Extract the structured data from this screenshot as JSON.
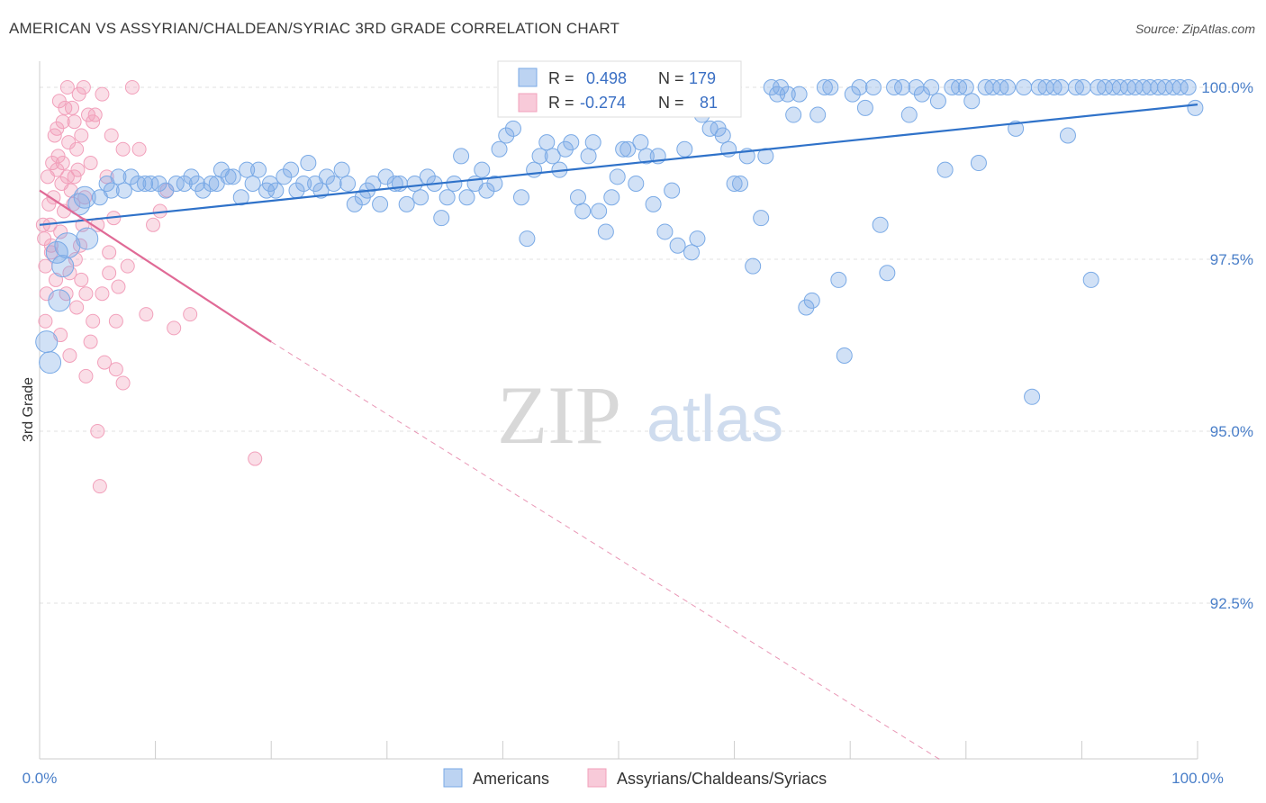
{
  "header": {
    "title": "AMERICAN VS ASSYRIAN/CHALDEAN/SYRIAC 3RD GRADE CORRELATION CHART",
    "source": "Source: ZipAtlas.com"
  },
  "watermark": {
    "zip": "ZIP",
    "atlas": "atlas"
  },
  "stats": {
    "r_label": "R =",
    "n_label": "N =",
    "americans": {
      "r": "0.498",
      "n": "179"
    },
    "assyrians": {
      "r": "-0.274",
      "n": "81"
    }
  },
  "chart_data": {
    "type": "scatter",
    "title": "AMERICAN VS ASSYRIAN/CHALDEAN/SYRIAC 3RD GRADE CORRELATION CHART",
    "xlabel": "",
    "ylabel": "3rd Grade",
    "xlim": [
      0,
      100
    ],
    "ylim": [
      90.2,
      100.4
    ],
    "x_tick_labels": [
      "0.0%",
      "100.0%"
    ],
    "y_ticks": [
      {
        "value": 100.0,
        "label": "100.0%"
      },
      {
        "value": 97.5,
        "label": "97.5%"
      },
      {
        "value": 95.0,
        "label": "95.0%"
      },
      {
        "value": 92.5,
        "label": "92.5%"
      }
    ],
    "grid": true,
    "legend_position": "bottom-center",
    "colors": {
      "americans": "#7aaae6",
      "americans_line": "#2f72c9",
      "assyrians": "#f2a0bb",
      "assyrians_line": "#e06a96"
    },
    "series": [
      {
        "name": "Americans",
        "color": "#7aaae6",
        "trend": {
          "x": [
            0,
            100
          ],
          "y": [
            98.0,
            99.75
          ],
          "style": "solid"
        },
        "points": [
          [
            0.6,
            96.3
          ],
          [
            0.9,
            96.0
          ],
          [
            1.5,
            97.6
          ],
          [
            1.7,
            96.9
          ],
          [
            2.0,
            97.4
          ],
          [
            2.4,
            97.7
          ],
          [
            3.4,
            98.3
          ],
          [
            3.9,
            98.4
          ],
          [
            4.1,
            97.8
          ],
          [
            5.2,
            98.4
          ],
          [
            5.8,
            98.6
          ],
          [
            6.2,
            98.5
          ],
          [
            6.8,
            98.7
          ],
          [
            7.3,
            98.5
          ],
          [
            7.9,
            98.7
          ],
          [
            8.5,
            98.6
          ],
          [
            9.1,
            98.6
          ],
          [
            9.6,
            98.6
          ],
          [
            10.3,
            98.6
          ],
          [
            10.9,
            98.5
          ],
          [
            11.8,
            98.6
          ],
          [
            12.5,
            98.6
          ],
          [
            13.1,
            98.7
          ],
          [
            13.6,
            98.6
          ],
          [
            14.1,
            98.5
          ],
          [
            14.8,
            98.6
          ],
          [
            15.3,
            98.6
          ],
          [
            15.7,
            98.8
          ],
          [
            16.3,
            98.7
          ],
          [
            16.7,
            98.7
          ],
          [
            17.4,
            98.4
          ],
          [
            17.9,
            98.8
          ],
          [
            18.4,
            98.6
          ],
          [
            18.9,
            98.8
          ],
          [
            19.6,
            98.5
          ],
          [
            19.9,
            98.6
          ],
          [
            20.4,
            98.5
          ],
          [
            21.1,
            98.7
          ],
          [
            21.7,
            98.8
          ],
          [
            22.2,
            98.5
          ],
          [
            22.8,
            98.6
          ],
          [
            23.2,
            98.9
          ],
          [
            23.8,
            98.6
          ],
          [
            24.3,
            98.5
          ],
          [
            24.8,
            98.7
          ],
          [
            25.4,
            98.6
          ],
          [
            26.1,
            98.8
          ],
          [
            26.6,
            98.6
          ],
          [
            27.2,
            98.3
          ],
          [
            27.9,
            98.4
          ],
          [
            28.3,
            98.5
          ],
          [
            28.8,
            98.6
          ],
          [
            29.4,
            98.3
          ],
          [
            29.9,
            98.7
          ],
          [
            30.7,
            98.6
          ],
          [
            31.1,
            98.6
          ],
          [
            31.7,
            98.3
          ],
          [
            32.4,
            98.6
          ],
          [
            32.9,
            98.4
          ],
          [
            33.5,
            98.7
          ],
          [
            34.1,
            98.6
          ],
          [
            34.7,
            98.1
          ],
          [
            35.2,
            98.4
          ],
          [
            35.8,
            98.6
          ],
          [
            36.4,
            99.0
          ],
          [
            36.9,
            98.4
          ],
          [
            37.6,
            98.6
          ],
          [
            38.2,
            98.8
          ],
          [
            38.6,
            98.5
          ],
          [
            39.3,
            98.6
          ],
          [
            39.7,
            99.1
          ],
          [
            40.3,
            99.3
          ],
          [
            40.9,
            99.4
          ],
          [
            41.6,
            98.4
          ],
          [
            42.1,
            97.8
          ],
          [
            42.7,
            98.8
          ],
          [
            43.2,
            99.0
          ],
          [
            43.8,
            99.2
          ],
          [
            44.3,
            99.0
          ],
          [
            44.9,
            98.8
          ],
          [
            45.4,
            99.1
          ],
          [
            45.9,
            99.2
          ],
          [
            46.5,
            98.4
          ],
          [
            46.9,
            98.2
          ],
          [
            47.4,
            99.0
          ],
          [
            47.8,
            99.2
          ],
          [
            48.3,
            98.2
          ],
          [
            48.9,
            97.9
          ],
          [
            49.4,
            98.4
          ],
          [
            49.9,
            98.7
          ],
          [
            50.4,
            99.1
          ],
          [
            50.8,
            99.1
          ],
          [
            51.5,
            98.6
          ],
          [
            51.9,
            99.2
          ],
          [
            52.4,
            99.0
          ],
          [
            53.0,
            98.3
          ],
          [
            53.4,
            99.0
          ],
          [
            54.0,
            97.9
          ],
          [
            54.6,
            98.5
          ],
          [
            55.1,
            97.7
          ],
          [
            55.7,
            99.1
          ],
          [
            56.3,
            97.6
          ],
          [
            56.8,
            97.8
          ],
          [
            57.2,
            99.6
          ],
          [
            57.9,
            99.4
          ],
          [
            58.6,
            99.4
          ],
          [
            59.0,
            99.3
          ],
          [
            59.5,
            99.1
          ],
          [
            60.0,
            98.6
          ],
          [
            60.5,
            98.6
          ],
          [
            61.1,
            99.0
          ],
          [
            61.6,
            97.4
          ],
          [
            62.3,
            98.1
          ],
          [
            62.7,
            99.0
          ],
          [
            63.2,
            100.0
          ],
          [
            63.7,
            99.9
          ],
          [
            64.0,
            100.0
          ],
          [
            64.6,
            99.9
          ],
          [
            65.1,
            99.6
          ],
          [
            65.6,
            99.9
          ],
          [
            66.2,
            96.8
          ],
          [
            66.7,
            96.9
          ],
          [
            67.2,
            99.6
          ],
          [
            67.8,
            100.0
          ],
          [
            68.3,
            100.0
          ],
          [
            69.0,
            97.2
          ],
          [
            69.5,
            96.1
          ],
          [
            70.2,
            99.9
          ],
          [
            70.8,
            100.0
          ],
          [
            71.3,
            99.7
          ],
          [
            72.0,
            100.0
          ],
          [
            72.6,
            98.0
          ],
          [
            73.2,
            97.3
          ],
          [
            73.8,
            100.0
          ],
          [
            74.5,
            100.0
          ],
          [
            75.1,
            99.6
          ],
          [
            75.7,
            100.0
          ],
          [
            76.2,
            99.9
          ],
          [
            77.0,
            100.0
          ],
          [
            77.6,
            99.8
          ],
          [
            78.2,
            98.8
          ],
          [
            78.8,
            100.0
          ],
          [
            79.4,
            100.0
          ],
          [
            80.0,
            100.0
          ],
          [
            80.5,
            99.8
          ],
          [
            81.1,
            98.9
          ],
          [
            81.7,
            100.0
          ],
          [
            82.3,
            100.0
          ],
          [
            83.0,
            100.0
          ],
          [
            83.6,
            100.0
          ],
          [
            84.3,
            99.4
          ],
          [
            85.0,
            100.0
          ],
          [
            85.7,
            95.5
          ],
          [
            86.3,
            100.0
          ],
          [
            86.9,
            100.0
          ],
          [
            87.6,
            100.0
          ],
          [
            88.2,
            100.0
          ],
          [
            88.8,
            99.3
          ],
          [
            89.5,
            100.0
          ],
          [
            90.1,
            100.0
          ],
          [
            90.8,
            97.2
          ],
          [
            91.4,
            100.0
          ],
          [
            92.0,
            100.0
          ],
          [
            92.7,
            100.0
          ],
          [
            93.3,
            100.0
          ],
          [
            94.0,
            100.0
          ],
          [
            94.6,
            100.0
          ],
          [
            95.3,
            100.0
          ],
          [
            95.9,
            100.0
          ],
          [
            96.6,
            100.0
          ],
          [
            97.2,
            100.0
          ],
          [
            97.9,
            100.0
          ],
          [
            98.5,
            100.0
          ],
          [
            99.2,
            100.0
          ],
          [
            99.8,
            99.7
          ]
        ]
      },
      {
        "name": "Assyrians/Chaldeans/Syriacs",
        "color": "#f2a0bb",
        "trend": {
          "x": [
            0,
            20
          ],
          "y": [
            98.5,
            96.3
          ],
          "style": "solid",
          "extended": {
            "x": [
              20,
              78
            ],
            "y": [
              96.3,
              90.2
            ],
            "style": "dashed"
          }
        },
        "points": [
          [
            0.3,
            98.0
          ],
          [
            0.4,
            97.8
          ],
          [
            0.5,
            97.4
          ],
          [
            0.6,
            97.0
          ],
          [
            0.7,
            98.7
          ],
          [
            0.8,
            98.3
          ],
          [
            0.9,
            98.0
          ],
          [
            1.0,
            97.6
          ],
          [
            1.1,
            98.9
          ],
          [
            1.2,
            98.4
          ],
          [
            1.3,
            99.3
          ],
          [
            1.4,
            97.2
          ],
          [
            1.5,
            98.8
          ],
          [
            1.6,
            99.0
          ],
          [
            1.7,
            99.8
          ],
          [
            1.8,
            97.9
          ],
          [
            1.9,
            98.6
          ],
          [
            2.0,
            99.5
          ],
          [
            2.1,
            98.2
          ],
          [
            2.2,
            99.7
          ],
          [
            2.3,
            97.0
          ],
          [
            2.4,
            98.7
          ],
          [
            2.5,
            99.2
          ],
          [
            2.6,
            96.1
          ],
          [
            2.7,
            98.5
          ],
          [
            2.8,
            99.7
          ],
          [
            2.9,
            98.3
          ],
          [
            3.0,
            99.5
          ],
          [
            3.1,
            97.5
          ],
          [
            3.2,
            99.1
          ],
          [
            3.3,
            98.8
          ],
          [
            3.4,
            99.9
          ],
          [
            3.5,
            97.7
          ],
          [
            3.6,
            99.3
          ],
          [
            3.7,
            98.0
          ],
          [
            3.8,
            100.0
          ],
          [
            3.9,
            98.4
          ],
          [
            4.0,
            97.0
          ],
          [
            4.2,
            99.6
          ],
          [
            4.4,
            98.9
          ],
          [
            4.6,
            96.6
          ],
          [
            4.8,
            99.6
          ],
          [
            5.0,
            95.0
          ],
          [
            5.2,
            94.2
          ],
          [
            5.4,
            97.0
          ],
          [
            5.6,
            96.0
          ],
          [
            5.8,
            98.7
          ],
          [
            6.0,
            97.3
          ],
          [
            6.2,
            99.3
          ],
          [
            6.4,
            98.1
          ],
          [
            6.6,
            96.6
          ],
          [
            6.8,
            97.1
          ],
          [
            7.2,
            95.7
          ],
          [
            7.6,
            97.4
          ],
          [
            8.0,
            100.0
          ],
          [
            8.6,
            99.1
          ],
          [
            9.2,
            96.7
          ],
          [
            9.8,
            98.0
          ],
          [
            10.4,
            98.2
          ],
          [
            11.0,
            98.5
          ],
          [
            11.6,
            96.5
          ],
          [
            13.0,
            96.7
          ],
          [
            18.6,
            94.6
          ],
          [
            0.5,
            96.6
          ],
          [
            1.5,
            99.4
          ],
          [
            2.0,
            98.9
          ],
          [
            2.6,
            97.3
          ],
          [
            3.2,
            96.8
          ],
          [
            4.0,
            95.8
          ],
          [
            4.6,
            99.5
          ],
          [
            5.4,
            99.9
          ],
          [
            6.0,
            97.6
          ],
          [
            6.6,
            95.9
          ],
          [
            7.2,
            99.1
          ],
          [
            1.0,
            97.7
          ],
          [
            1.8,
            96.4
          ],
          [
            2.4,
            100.0
          ],
          [
            3.0,
            98.7
          ],
          [
            3.6,
            97.2
          ],
          [
            4.4,
            96.3
          ],
          [
            5.0,
            98.0
          ]
        ]
      }
    ]
  },
  "legend": {
    "items": [
      {
        "label": "Americans",
        "color": "#7aaae6"
      },
      {
        "label": "Assyrians/Chaldeans/Syriacs",
        "color": "#f2a0bb"
      }
    ]
  }
}
